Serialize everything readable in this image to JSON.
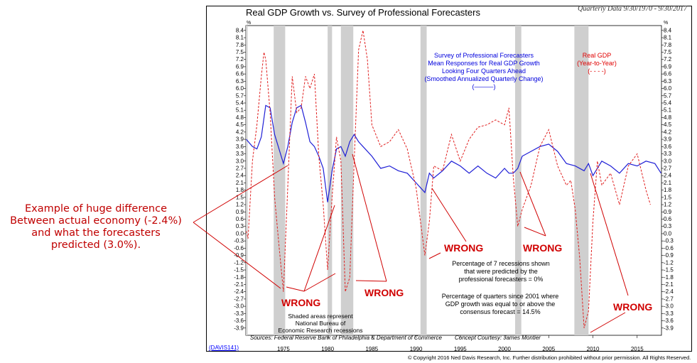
{
  "title": "Real GDP Growth vs. Survey of Professional Forecasters",
  "period": "Quarterly Data 9/30/1970 - 9/30/2017",
  "unit": "%",
  "sources": "Sources: Federal Reserve Bank of Philadelphia & Department of Commerce",
  "concept": "Concept Courtesy: James Montier",
  "code": "(DAVIS141)",
  "copyright": "© Copyright 2016 Ned Davis Research, Inc. Further distribution prohibited without prior permission. All Rights Reserved.",
  "legend_spf": [
    "Survey of Professional Forecasters",
    "Mean Responses for Real GDP Growth",
    "Looking Four Quarters Ahead",
    "(Smoothed Annualized Quarterly Change)",
    "(———)"
  ],
  "legend_gdp": [
    "Real GDP",
    "(Year-to-Year)",
    "(- - - -)"
  ],
  "annotation_left": [
    "Example of huge difference",
    "Between actual economy (-2.4%)",
    "and what the forecasters",
    "predicted (3.0%)."
  ],
  "wrong_label": "WRONG",
  "recession_note": [
    "Shaded areas represent",
    "National Bureau of",
    "Economic Research recessions"
  ],
  "stat1": [
    "Percentage of 7 recessions shown",
    "that were predicted by the",
    "professional forecasters = 0%"
  ],
  "stat2": [
    "Percentage of quarters since 2001 where",
    "GDP growth was equal to or above the",
    "consensus forecast = 14.5%"
  ],
  "colors": {
    "spf": "#1f1fd6",
    "gdp": "#e02020",
    "recession": "#cfcfcf",
    "annotation": "#c00000"
  },
  "chart_data": {
    "type": "line",
    "xlim": [
      1970.75,
      2017.75
    ],
    "ylim": [
      -4.2,
      8.6
    ],
    "x_ticks": [
      1975,
      1980,
      1985,
      1990,
      1995,
      2000,
      2005,
      2010,
      2015
    ],
    "y_ticks": [
      8.4,
      8.1,
      7.8,
      7.5,
      7.2,
      6.9,
      6.6,
      6.3,
      6.0,
      5.7,
      5.4,
      5.1,
      4.8,
      4.5,
      4.2,
      3.9,
      3.6,
      3.3,
      3.0,
      2.7,
      2.4,
      2.1,
      1.8,
      1.5,
      1.2,
      0.9,
      0.6,
      0.3,
      0.0,
      -0.3,
      -0.6,
      -0.9,
      -1.2,
      -1.5,
      -1.8,
      -2.1,
      -2.4,
      -2.7,
      -3.0,
      -3.3,
      -3.6,
      -3.9
    ],
    "y_tick_labels": [
      "8.4",
      "8.1",
      "7.8",
      "7.5",
      "7.2",
      "6.9",
      "6.6",
      "6.3",
      "6.0",
      "5.7",
      "5.4",
      "5.1",
      "4.8",
      "4.5",
      "4.2",
      "3.9",
      "3.6",
      "3.3",
      "3.0",
      "2.7",
      "2.4",
      "2.1",
      "1.8",
      "1.5",
      "1.2",
      "0.9",
      "0.6",
      "0.3",
      "0.0",
      "-0.3",
      "-0.6",
      "-0.9",
      "-1.2",
      "-1.5",
      "-1.8",
      "-2.1",
      "-2.4",
      "-2.7",
      "-3.0",
      "-3.3",
      "-3.6",
      "-3.9"
    ],
    "recessions": [
      [
        1970.75,
        1970.95
      ],
      [
        1973.9,
        1975.2
      ],
      [
        1980.0,
        1980.5
      ],
      [
        1981.5,
        1982.9
      ],
      [
        1990.5,
        1991.2
      ],
      [
        2001.2,
        2001.9
      ],
      [
        2007.9,
        2009.5
      ]
    ],
    "series": [
      {
        "name": "Survey of Professional Forecasters",
        "x": [
          1970.8,
          1971.5,
          1972.0,
          1972.5,
          1973.0,
          1973.5,
          1974.0,
          1974.5,
          1975.0,
          1975.5,
          1976.0,
          1976.5,
          1977.0,
          1977.5,
          1978.0,
          1978.5,
          1979.0,
          1979.5,
          1980.0,
          1980.5,
          1981.0,
          1981.5,
          1982.0,
          1982.5,
          1983.0,
          1983.5,
          1984.0,
          1985.0,
          1986.0,
          1987.0,
          1988.0,
          1989.0,
          1990.0,
          1990.5,
          1991.0,
          1991.5,
          1992.0,
          1993.0,
          1994.0,
          1995.0,
          1996.0,
          1997.0,
          1998.0,
          1999.0,
          2000.0,
          2000.5,
          2001.0,
          2001.5,
          2002.0,
          2003.0,
          2004.0,
          2005.0,
          2006.0,
          2007.0,
          2008.0,
          2009.0,
          2009.5,
          2010.0,
          2011.0,
          2012.0,
          2013.0,
          2014.0,
          2015.0,
          2016.0,
          2017.0,
          2017.7
        ],
        "y": [
          3.9,
          3.6,
          3.5,
          4.0,
          5.3,
          5.2,
          4.1,
          3.5,
          2.9,
          3.6,
          4.6,
          5.2,
          5.3,
          4.6,
          3.8,
          3.6,
          3.2,
          2.7,
          1.3,
          2.6,
          3.5,
          3.6,
          3.2,
          3.8,
          4.1,
          3.8,
          3.6,
          3.2,
          2.7,
          2.8,
          2.6,
          2.5,
          2.1,
          1.9,
          1.7,
          2.5,
          2.3,
          2.6,
          3.0,
          2.8,
          2.5,
          2.8,
          2.5,
          2.3,
          2.7,
          2.5,
          2.5,
          2.7,
          3.2,
          3.4,
          3.6,
          3.7,
          3.4,
          2.9,
          2.8,
          2.6,
          2.9,
          2.4,
          3.0,
          2.8,
          2.5,
          2.9,
          2.8,
          3.0,
          2.9,
          2.5
        ]
      },
      {
        "name": "Real GDP",
        "x": [
          1970.8,
          1971.0,
          1971.5,
          1972.0,
          1972.5,
          1972.8,
          1973.0,
          1973.5,
          1974.0,
          1974.5,
          1975.0,
          1975.5,
          1976.0,
          1976.5,
          1977.0,
          1977.5,
          1978.0,
          1978.5,
          1979.0,
          1979.5,
          1980.0,
          1980.5,
          1981.0,
          1981.5,
          1982.0,
          1982.5,
          1983.0,
          1983.5,
          1984.0,
          1984.5,
          1985.0,
          1986.0,
          1987.0,
          1988.0,
          1989.0,
          1990.0,
          1990.5,
          1991.0,
          1991.5,
          1992.0,
          1993.0,
          1994.0,
          1995.0,
          1996.0,
          1997.0,
          1998.0,
          1999.0,
          2000.0,
          2000.5,
          2001.0,
          2001.5,
          2002.0,
          2003.0,
          2004.0,
          2005.0,
          2006.0,
          2007.0,
          2007.5,
          2008.0,
          2008.5,
          2009.0,
          2009.5,
          2010.0,
          2010.5,
          2011.0,
          2012.0,
          2013.0,
          2014.0,
          2015.0,
          2016.0,
          2016.5
        ],
        "y": [
          0.1,
          -0.2,
          3.0,
          4.5,
          6.5,
          7.5,
          7.2,
          5.0,
          1.5,
          -0.5,
          -2.4,
          2.0,
          6.5,
          5.0,
          5.2,
          6.5,
          6.0,
          6.6,
          3.2,
          1.2,
          -1.5,
          1.5,
          4.0,
          3.0,
          -2.4,
          -1.8,
          3.0,
          7.6,
          8.4,
          7.2,
          4.5,
          3.6,
          3.8,
          4.3,
          3.5,
          1.9,
          0.5,
          -0.9,
          0.5,
          2.8,
          2.6,
          4.1,
          3.0,
          3.9,
          4.4,
          4.5,
          4.7,
          4.5,
          5.2,
          2.3,
          0.3,
          1.0,
          2.0,
          3.6,
          4.3,
          2.8,
          2.0,
          2.2,
          1.0,
          -1.0,
          -3.9,
          -3.2,
          0.5,
          3.0,
          2.0,
          2.5,
          1.2,
          2.8,
          3.3,
          1.8,
          1.2
        ]
      }
    ]
  }
}
